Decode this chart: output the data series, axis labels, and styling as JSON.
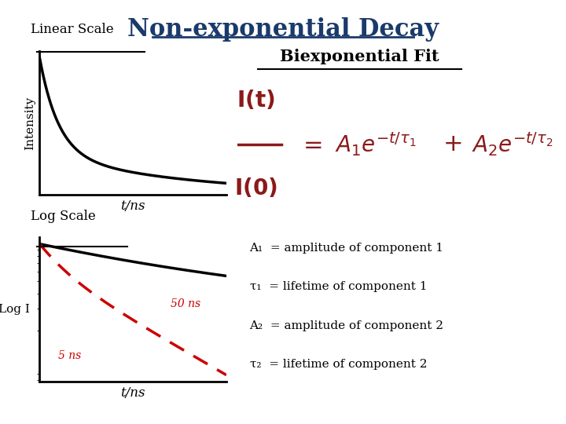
{
  "title": "Non-exponential Decay",
  "title_color": "#1a3a6b",
  "title_fontsize": 22,
  "linear_scale_label": "Linear Scale",
  "log_scale_label": "Log Scale",
  "biexp_fit_label": "Biexponential Fit",
  "xlabel_linear": "t/ns",
  "xlabel_log": "t/ns",
  "ylabel_linear": "Intensity",
  "ylabel_log": "Log I",
  "annotation_lines": [
    "A₁  = amplitude of component 1",
    "τ₁  = lifetime of component 1",
    "A₂  = amplitude of component 2",
    "τ₂  = lifetime of component 2"
  ],
  "label_50ns": "50 ns",
  "label_5ns": "5 ns",
  "curve_color": "#000000",
  "dashed_color": "#cc0000",
  "formula_color": "#8b1a1a",
  "title_color2": "#1a3a6b",
  "background_color": "#ffffff"
}
